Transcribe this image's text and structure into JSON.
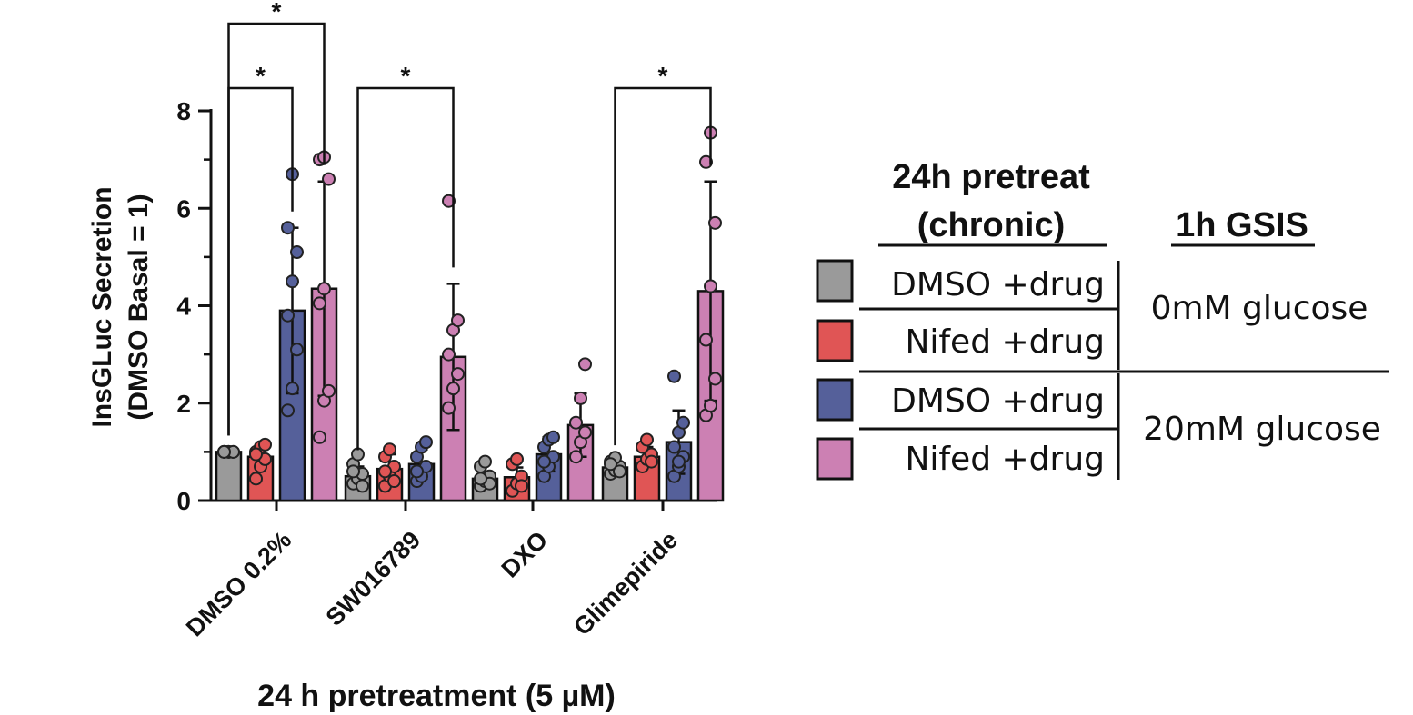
{
  "chart_data": {
    "type": "bar",
    "ylabel_line1": "InsGLuc Secretion",
    "ylabel_line2": "(DMSO Basal = 1)",
    "xlabel": "24 h pretreatment (5 µM)",
    "ylim": [
      0,
      8
    ],
    "yticks": [
      0,
      2,
      4,
      6,
      8
    ],
    "categories": [
      "DMSO 0.2%",
      "SW016789",
      "DXO",
      "Glimepiride"
    ],
    "series": [
      {
        "name": "DMSO +drug",
        "condition": "0mM glucose",
        "color": "#9a9a9a",
        "values": [
          1.0,
          0.5,
          0.45,
          0.68
        ],
        "errors": [
          0.0,
          0.2,
          0.15,
          0.12
        ],
        "points": [
          [
            1.0,
            1.0,
            1.0,
            1.0,
            1.0,
            1.0,
            1.0
          ],
          [
            0.35,
            0.45,
            0.55,
            0.75,
            0.95,
            0.3,
            0.6
          ],
          [
            0.3,
            0.4,
            0.5,
            0.7,
            0.8,
            0.35,
            0.45
          ],
          [
            0.55,
            0.62,
            0.7,
            0.8,
            0.88,
            0.6,
            0.75
          ]
        ]
      },
      {
        "name": "Nifed +drug",
        "condition": "0mM glucose",
        "color": "#e05555",
        "values": [
          0.9,
          0.65,
          0.48,
          0.9
        ],
        "errors": [
          0.2,
          0.3,
          0.2,
          0.2
        ],
        "points": [
          [
            0.45,
            0.7,
            0.85,
            1.0,
            1.1,
            1.15,
            0.95
          ],
          [
            0.3,
            0.5,
            0.7,
            0.9,
            1.05,
            0.4,
            0.6
          ],
          [
            0.2,
            0.35,
            0.5,
            0.75,
            0.85,
            0.3
          ],
          [
            0.7,
            0.85,
            0.95,
            1.1,
            1.25,
            0.8
          ]
        ]
      },
      {
        "name": "DMSO +drug",
        "condition": "20mM glucose",
        "color": "#55609a",
        "values": [
          3.9,
          0.75,
          0.95,
          1.2
        ],
        "errors": [
          1.7,
          0.3,
          0.35,
          0.65
        ],
        "points": [
          [
            1.85,
            2.3,
            3.1,
            3.8,
            4.5,
            5.1,
            5.6,
            6.7
          ],
          [
            0.4,
            0.5,
            0.7,
            0.9,
            1.1,
            1.2,
            0.6
          ],
          [
            0.5,
            0.7,
            0.9,
            1.1,
            1.25,
            1.3,
            0.8
          ],
          [
            0.5,
            0.7,
            0.9,
            1.1,
            1.4,
            1.6,
            2.55,
            0.8
          ]
        ]
      },
      {
        "name": "Nifed +drug",
        "condition": "20mM glucose",
        "color": "#cc80b3",
        "values": [
          4.35,
          2.95,
          1.55,
          4.3
        ],
        "errors": [
          2.2,
          1.5,
          0.65,
          2.25
        ],
        "points": [
          [
            1.3,
            2.05,
            2.25,
            4.05,
            4.35,
            6.6,
            7.0,
            7.05
          ],
          [
            1.9,
            2.3,
            2.6,
            3.0,
            3.5,
            3.7,
            6.15
          ],
          [
            0.9,
            1.2,
            1.4,
            1.6,
            2.1,
            2.8
          ],
          [
            1.75,
            1.95,
            2.5,
            3.3,
            4.4,
            5.7,
            6.95,
            7.55
          ]
        ]
      }
    ],
    "significance": [
      {
        "category": 0,
        "from_series": 0,
        "to_series": 2,
        "label": "*"
      },
      {
        "category": 0,
        "from_series": 0,
        "to_series": 3,
        "label": "*"
      },
      {
        "category": 1,
        "from_series": 0,
        "to_series": 3,
        "label": "*"
      },
      {
        "category": 3,
        "from_series": 0,
        "to_series": 3,
        "label": "*"
      }
    ]
  },
  "legend": {
    "header_left_line1": "24h pretreat",
    "header_left_line2": "(chronic)",
    "header_right": "1h GSIS",
    "items": [
      {
        "label": "DMSO +drug",
        "color": "#9a9a9a"
      },
      {
        "label": "Nifed +drug",
        "color": "#e05555"
      },
      {
        "label": "DMSO +drug",
        "color": "#55609a"
      },
      {
        "label": "Nifed +drug",
        "color": "#cc80b3"
      }
    ],
    "groups": [
      "0mM glucose",
      "20mM glucose"
    ]
  }
}
